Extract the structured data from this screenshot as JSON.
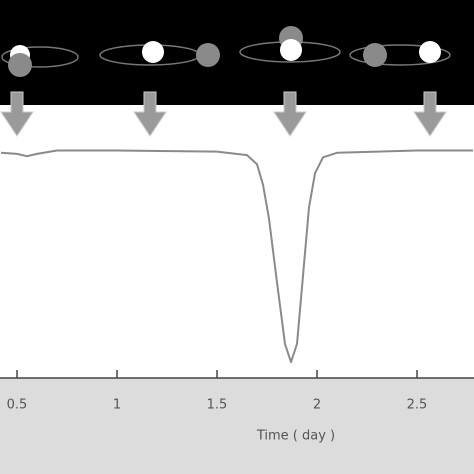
{
  "chart_data": {
    "type": "line",
    "xlabel": "Time ( day )",
    "series": [
      {
        "color": "#8a8a8a",
        "x": [
          0.42,
          0.5,
          0.55,
          0.6,
          0.7,
          1.0,
          1.5,
          1.65,
          1.7,
          1.73,
          1.76,
          1.8,
          1.84,
          1.87,
          1.9,
          1.93,
          1.96,
          1.99,
          2.03,
          2.1,
          2.5,
          2.78
        ],
        "values": [
          0.99,
          0.985,
          0.975,
          0.985,
          1.0,
          1.0,
          0.995,
          0.98,
          0.94,
          0.85,
          0.7,
          0.42,
          0.15,
          0.07,
          0.15,
          0.45,
          0.75,
          0.9,
          0.97,
          0.99,
          1.0,
          1.0
        ]
      }
    ],
    "xlim": [
      0.415,
      2.785
    ],
    "xticks": [
      0.5,
      1,
      1.5,
      2,
      2.5
    ],
    "ylim": [
      0,
      1.2
    ],
    "grid": false
  }
}
